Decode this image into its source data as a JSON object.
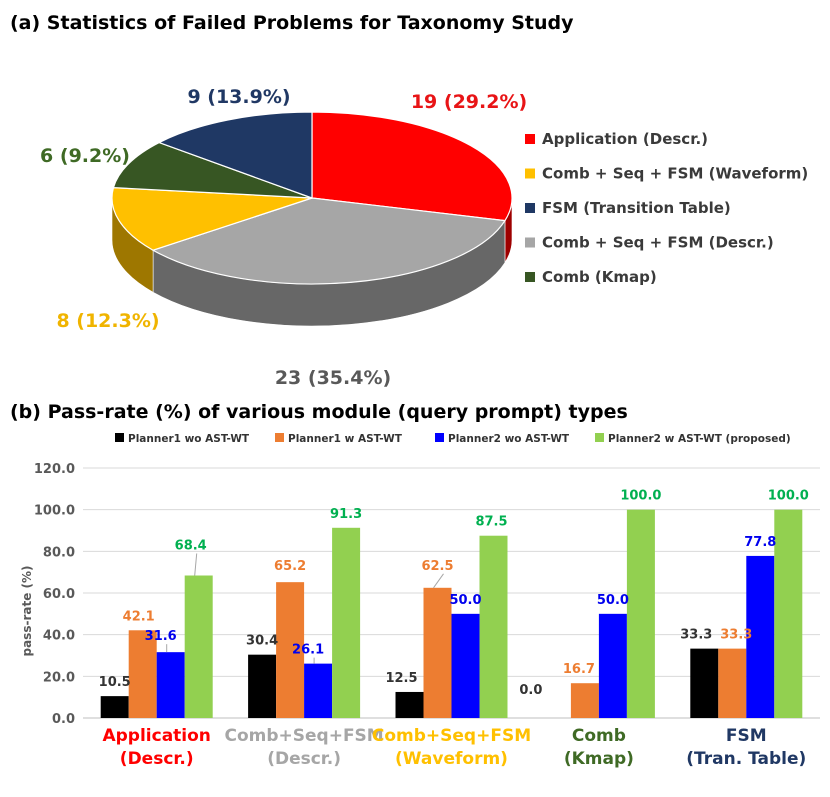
{
  "chart_data": [
    {
      "type": "pie",
      "title": "(a) Statistics of Failed Problems for Taxonomy Study",
      "slices": [
        {
          "name": "Application (Descr.)",
          "value": 19,
          "label": "19 (29.2%)",
          "color": "#ff0000",
          "label_color": "#e81416"
        },
        {
          "name": "Comb + Seq + FSM (Descr.)",
          "value": 23,
          "label": "23 (35.4%)",
          "color": "#a6a6a6",
          "label_color": "#595959"
        },
        {
          "name": "Comb + Seq + FSM (Waveform)",
          "value": 8,
          "label": "8 (12.3%)",
          "color": "#ffc000",
          "label_color": "#f0b400"
        },
        {
          "name": "Comb (Kmap)",
          "value": 6,
          "label": "6 (9.2%)",
          "color": "#375623",
          "label_color": "#3f6a25"
        },
        {
          "name": "FSM (Transition Table)",
          "value": 9,
          "label": "9 (13.9%)",
          "color": "#1f3864",
          "label_color": "#203864"
        }
      ],
      "legend": [
        {
          "label": "Application (Descr.)",
          "color": "#ff0000"
        },
        {
          "label": "Comb + Seq + FSM (Waveform)",
          "color": "#ffc000"
        },
        {
          "label": "FSM (Transition Table)",
          "color": "#1f3864"
        },
        {
          "label": "Comb + Seq + FSM (Descr.)",
          "color": "#a6a6a6"
        },
        {
          "label": "Comb (Kmap)",
          "color": "#375623"
        }
      ],
      "legend_position": "right"
    },
    {
      "type": "bar",
      "title": "(b) Pass-rate (%) of various module (query prompt) types",
      "ylabel": "pass-rate (%)",
      "ylim": [
        0,
        120
      ],
      "yticks": [
        0,
        20,
        40,
        60,
        80,
        100,
        120
      ],
      "ytick_labels": [
        "0.0",
        "20.0",
        "40.0",
        "60.0",
        "80.0",
        "100.0",
        "120.0"
      ],
      "categories": [
        {
          "line1": "Application",
          "line2": "(Descr.)",
          "color": "#ff0000"
        },
        {
          "line1": "Comb+Seq+FSM",
          "line2": "(Descr.)",
          "color": "#a6a6a6"
        },
        {
          "line1": "Comb+Seq+FSM",
          "line2": "(Waveform)",
          "color": "#ffc000"
        },
        {
          "line1": "Comb",
          "line2": "(Kmap)",
          "color": "#3f6a25"
        },
        {
          "line1": "FSM",
          "line2": "(Tran. Table)",
          "color": "#203864"
        }
      ],
      "series": [
        {
          "name": "Planner1 wo AST-WT",
          "color": "#000000",
          "label_color": "#333333",
          "values": [
            10.5,
            30.4,
            12.5,
            0.0,
            33.3
          ],
          "labels": [
            "10.5",
            "30.4",
            "12.5",
            "0.0",
            "33.3"
          ]
        },
        {
          "name": "Planner1 w AST-WT",
          "color": "#ed7d31",
          "label_color": "#ed7d31",
          "values": [
            42.1,
            65.2,
            62.5,
            16.7,
            33.3
          ],
          "labels": [
            "42.1",
            "65.2",
            "62.5",
            "16.7",
            "33.3"
          ]
        },
        {
          "name": "Planner2 wo AST-WT",
          "color": "#0000ff",
          "label_color": "#0000ee",
          "values": [
            31.6,
            26.1,
            50.0,
            50.0,
            77.8
          ],
          "labels": [
            "31.6",
            "26.1",
            "50.0",
            "50.0",
            "77.8"
          ]
        },
        {
          "name": "Planner2 w AST-WT (proposed)",
          "color": "#92d050",
          "label_color": "#00b050",
          "values": [
            68.4,
            91.3,
            87.5,
            100.0,
            100.0
          ],
          "labels": [
            "68.4",
            "91.3",
            "87.5",
            "100.0",
            "100.0"
          ]
        }
      ],
      "legend_position": "top",
      "grid": true
    }
  ]
}
